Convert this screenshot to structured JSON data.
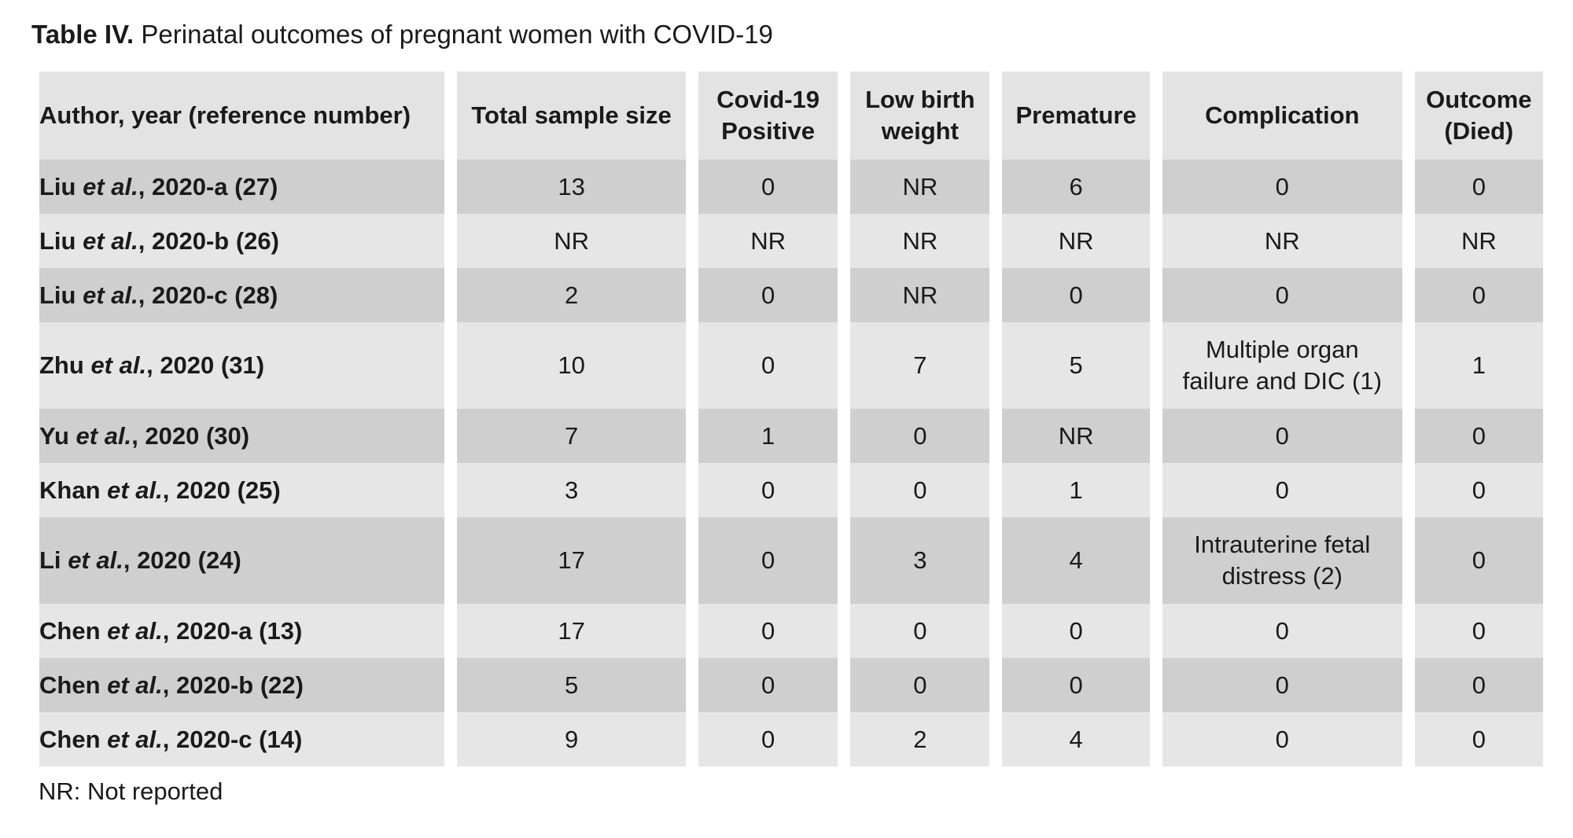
{
  "caption": {
    "label": "Table IV.",
    "text": " Perinatal outcomes of pregnant women with COVID-19"
  },
  "table": {
    "headers": {
      "author": "Author, year (reference number)",
      "sample": "Total sample size",
      "covid_line1": "Covid-19",
      "covid_line2": "Positive",
      "lbw_line1": "Low birth",
      "lbw_line2": "weight",
      "premature": "Premature",
      "complication": "Complication",
      "outcome_line1": "Outcome",
      "outcome_line2": "(Died)"
    },
    "rows": [
      {
        "author": "Liu",
        "etal": "et al.",
        "year_ref": ", 2020-a (27)",
        "sample": "13",
        "covid": "0",
        "lbw": "NR",
        "premature": "6",
        "complication_line1": "0",
        "complication_line2": "",
        "outcome": "0"
      },
      {
        "author": "Liu",
        "etal": "et al.",
        "year_ref": ", 2020-b (26)",
        "sample": "NR",
        "covid": "NR",
        "lbw": "NR",
        "premature": "NR",
        "complication_line1": "NR",
        "complication_line2": "",
        "outcome": "NR"
      },
      {
        "author": "Liu",
        "etal": "et al.",
        "year_ref": ", 2020-c (28)",
        "sample": "2",
        "covid": "0",
        "lbw": "NR",
        "premature": "0",
        "complication_line1": "0",
        "complication_line2": "",
        "outcome": "0"
      },
      {
        "author": "Zhu",
        "etal": "et al.",
        "year_ref": ", 2020 (31)",
        "sample": "10",
        "covid": "0",
        "lbw": "7",
        "premature": "5",
        "complication_line1": "Multiple organ",
        "complication_line2": "failure and DIC (1)",
        "outcome": "1"
      },
      {
        "author": "Yu",
        "etal": "et al.",
        "year_ref": ", 2020 (30)",
        "sample": "7",
        "covid": "1",
        "lbw": "0",
        "premature": "NR",
        "complication_line1": "0",
        "complication_line2": "",
        "outcome": "0"
      },
      {
        "author": "Khan",
        "etal": "et al.",
        "year_ref": ", 2020 (25)",
        "sample": "3",
        "covid": "0",
        "lbw": "0",
        "premature": "1",
        "complication_line1": "0",
        "complication_line2": "",
        "outcome": "0"
      },
      {
        "author": "Li",
        "etal": "et al.",
        "year_ref": ", 2020 (24)",
        "sample": "17",
        "covid": "0",
        "lbw": "3",
        "premature": "4",
        "complication_line1": "Intrauterine fetal",
        "complication_line2": "distress (2)",
        "outcome": "0"
      },
      {
        "author": "Chen",
        "etal": "et al.",
        "year_ref": ", 2020-a (13)",
        "sample": "17",
        "covid": "0",
        "lbw": "0",
        "premature": "0",
        "complication_line1": "0",
        "complication_line2": "",
        "outcome": "0"
      },
      {
        "author": "Chen",
        "etal": "et al.",
        "year_ref": ", 2020-b (22)",
        "sample": "5",
        "covid": "0",
        "lbw": "0",
        "premature": "0",
        "complication_line1": "0",
        "complication_line2": "",
        "outcome": "0"
      },
      {
        "author": "Chen",
        "etal": "et al.",
        "year_ref": ", 2020-c (14)",
        "sample": "9",
        "covid": "0",
        "lbw": "2",
        "premature": "4",
        "complication_line1": "0",
        "complication_line2": "",
        "outcome": "0"
      }
    ]
  },
  "footnote": "NR: Not reported"
}
